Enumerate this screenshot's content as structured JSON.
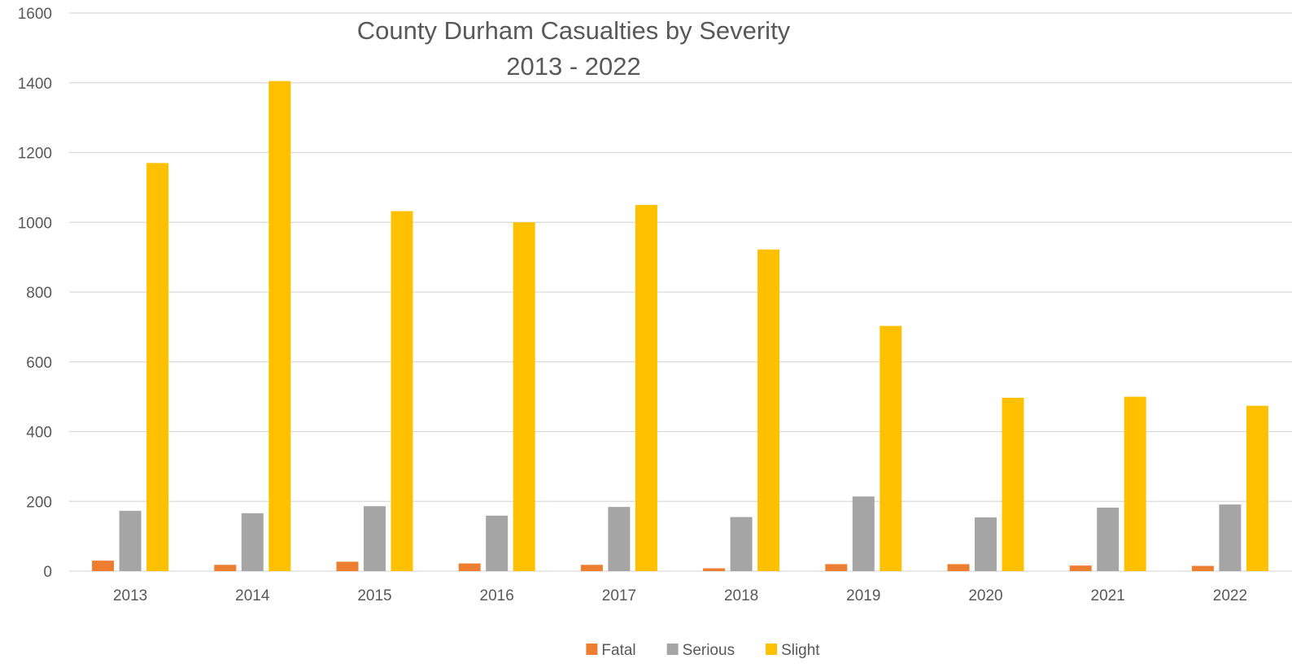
{
  "chart_data": {
    "type": "bar",
    "title": "County Durham Casualties by Severity",
    "subtitle": "2013 - 2022",
    "xlabel": "",
    "ylabel": "",
    "categories": [
      "2013",
      "2014",
      "2015",
      "2016",
      "2017",
      "2018",
      "2019",
      "2020",
      "2021",
      "2022"
    ],
    "series": [
      {
        "name": "Fatal",
        "color": "#ed7d31",
        "values": [
          30,
          18,
          27,
          22,
          18,
          8,
          20,
          20,
          16,
          15
        ]
      },
      {
        "name": "Serious",
        "color": "#a5a5a5",
        "values": [
          173,
          166,
          186,
          159,
          184,
          155,
          214,
          154,
          182,
          191
        ]
      },
      {
        "name": "Slight",
        "color": "#ffc000",
        "values": [
          1170,
          1405,
          1032,
          1000,
          1050,
          922,
          703,
          497,
          500,
          474
        ]
      }
    ],
    "ylim": [
      0,
      1600
    ],
    "yticks": [
      "0",
      "200",
      "400",
      "600",
      "800",
      "1000",
      "1200",
      "1400",
      "1600"
    ],
    "grid": true,
    "legend_position": "bottom"
  }
}
